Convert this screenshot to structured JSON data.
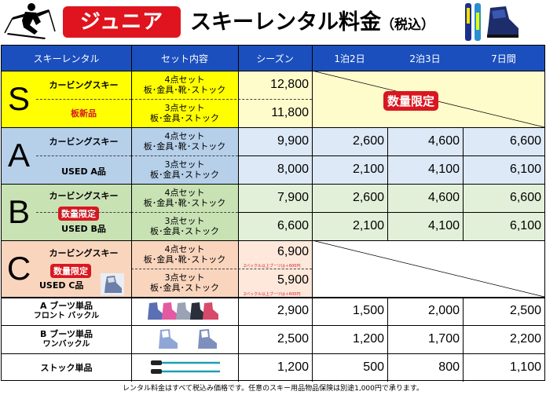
{
  "header": {
    "badge": "ジュニア",
    "title": "スキーレンタル料金",
    "tax": "（税込）"
  },
  "columns": [
    "スキーレンタル",
    "セット内容",
    "シーズン",
    "1泊2日",
    "2泊3日",
    "7日間"
  ],
  "groups": {
    "S": {
      "letter": "S",
      "name": "カービングスキー",
      "tag": "板新品",
      "set4": [
        "4点セット",
        "板･金具･靴･ストック"
      ],
      "set3": [
        "3点セット",
        "板･金具･ストック"
      ],
      "season4": "12,800",
      "season3": "11,800",
      "limited": "数量限定"
    },
    "A": {
      "letter": "A",
      "name": "カービングスキー",
      "used": "USED A品",
      "set4": [
        "4点セット",
        "板･金具･靴･ストック"
      ],
      "set3": [
        "3点セット",
        "板･金具･ストック"
      ],
      "row4": [
        "9,900",
        "2,600",
        "4,600",
        "6,600"
      ],
      "row3": [
        "8,000",
        "2,100",
        "4,100",
        "6,100"
      ]
    },
    "B": {
      "letter": "B",
      "name": "カービングスキー",
      "limited": "数量限定",
      "used": "USED B品",
      "set4": [
        "4点セット",
        "板･金具･靴･ストック"
      ],
      "set3": [
        "3点セット",
        "板･金具･ストック"
      ],
      "row4": [
        "7,900",
        "2,600",
        "4,600",
        "6,600"
      ],
      "row3": [
        "6,600",
        "2,100",
        "4,100",
        "6,100"
      ]
    },
    "C": {
      "letter": "C",
      "name": "カービングスキー",
      "limited": "数量限定",
      "used": "USED C品",
      "set4": [
        "4点セット",
        "板･金具･靴･ストック"
      ],
      "set3": [
        "3点セット",
        "板･金具･ストック"
      ],
      "season4": "6,900",
      "season3": "5,900",
      "note4": "2バックル以上ブーツは＋600円",
      "note3": "2バックル以上ブーツは＋600円"
    }
  },
  "singles": [
    {
      "name": "A ブーツ単品",
      "sub": "フロント バックル",
      "prices": [
        "2,900",
        "1,500",
        "2,000",
        "2,500"
      ]
    },
    {
      "name": "B ブーツ単品",
      "sub": "ワンバックル",
      "prices": [
        "2,500",
        "1,200",
        "1,700",
        "2,200"
      ]
    },
    {
      "name": "ストック単品",
      "sub": "",
      "prices": [
        "1,200",
        "500",
        "800",
        "1,100"
      ]
    }
  ],
  "footer": "レンタル料金はすべて税込み価格です。任意のスキー用品物品保険は別途1,000円で承ります。",
  "colors": {
    "header_blue": "#1b4fbd",
    "badge_red": "#d81820",
    "S_yellow": "#ffff00",
    "S_light": "#fffccc",
    "A_blue": "#b6d0ea",
    "A_light": "#dde9f6",
    "B_green": "#c8e2b4",
    "B_light": "#e3f0d9",
    "C_orange": "#fad5bd",
    "C_light": "#fde8db"
  }
}
